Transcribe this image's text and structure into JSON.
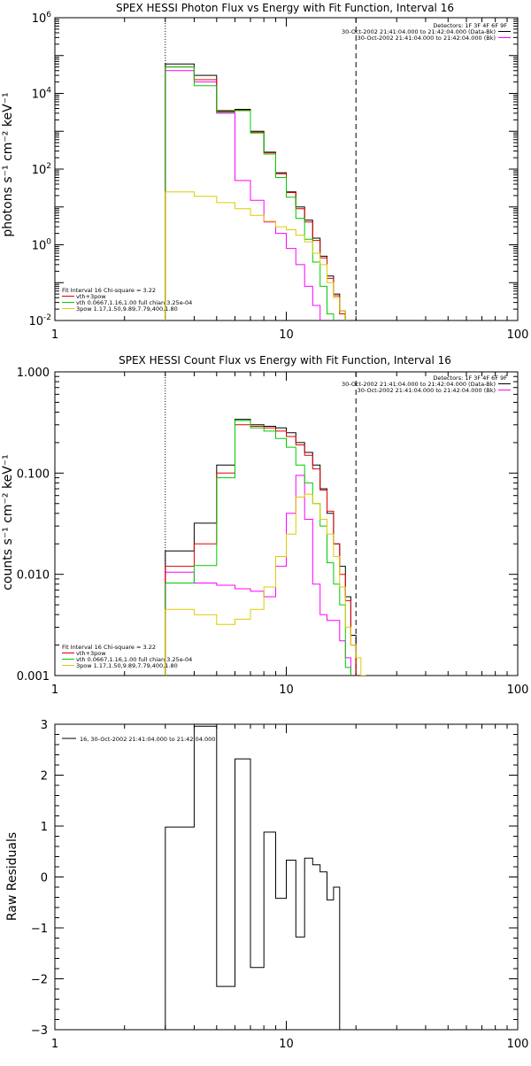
{
  "chart_data": [
    {
      "type": "line",
      "title": "SPEX HESSI Photon Flux vs Energy with Fit Function, Interval 16",
      "ylabel": "photons s⁻¹ cm⁻² keV⁻¹",
      "xscale": "log",
      "yscale": "log",
      "xlim": [
        1,
        100
      ],
      "ylim": [
        0.01,
        1000000
      ],
      "xticks": [
        "1",
        "10",
        "100"
      ],
      "yticks": [
        {
          "base": "10",
          "exp": "-2"
        },
        {
          "base": "10",
          "exp": "0"
        },
        {
          "base": "10",
          "exp": "2"
        },
        {
          "base": "10",
          "exp": "4"
        },
        {
          "base": "10",
          "exp": "6"
        }
      ],
      "vlines": [
        {
          "x": 3.0,
          "style": "dotted"
        },
        {
          "x": 20.0,
          "style": "dashed"
        }
      ],
      "info_text": [
        "Detectors: 1F 3F 4F 6F 9F",
        "30-Oct-2002 21:41:04.000 to 21:42:04.000 (Data-Bk)",
        "30-Oct-2002 21:41:04.000 to 21:42:04.000 (Bk)"
      ],
      "legend_text": [
        "Fit Interval 16   Chi-square = 3.22",
        "vth+3pow",
        "vth 0.0667,1.16,1.00  full chian 3.25e-04",
        "3pow 1.17,1.50,9.89,7.79,400,1.80"
      ],
      "legend_placement": "bottom-left",
      "bin_edges": [
        3,
        4,
        5,
        6,
        7,
        8,
        9,
        10,
        11,
        12,
        13,
        14,
        15,
        16,
        17,
        18,
        19,
        20,
        21,
        22,
        24,
        26
      ],
      "series": [
        {
          "name": "",
          "color": "#000000",
          "values": [
            60000,
            30000,
            3500,
            3800,
            1000,
            280,
            80,
            25,
            10,
            4.5,
            1.5,
            0.5,
            0.15,
            0.05,
            0.018,
            0.005
          ]
        },
        {
          "name": "Data-Bk",
          "color": "#ff00ff",
          "values": [
            40000,
            20000,
            3000,
            50,
            15,
            4,
            2,
            0.8,
            0.3,
            0.08,
            0.025,
            0.007,
            null,
            null,
            null,
            null
          ]
        },
        {
          "name": "vth+3pow",
          "color": "#dd0000",
          "values": [
            50000,
            23000,
            3300,
            3600,
            950,
            270,
            75,
            24,
            9,
            4,
            1.3,
            0.45,
            0.13,
            0.045,
            0.015,
            null
          ]
        },
        {
          "name": "vth",
          "color": "#00cc00",
          "values": [
            50000,
            16000,
            3200,
            3500,
            900,
            250,
            60,
            18,
            5,
            1.4,
            0.35,
            0.08,
            0.015,
            null,
            null,
            null
          ]
        },
        {
          "name": "3pow",
          "color": "#ddcc00",
          "values": [
            25,
            19,
            13,
            9,
            6,
            4.2,
            3,
            2.5,
            1.8,
            1.2,
            0.6,
            0.3,
            0.1,
            0.04,
            0.018,
            0.008,
            0.004
          ]
        }
      ]
    },
    {
      "type": "line",
      "title": "SPEX HESSI Count Flux vs Energy with Fit Function, Interval 16",
      "ylabel": "counts s⁻¹ cm⁻² keV⁻¹",
      "xscale": "log",
      "yscale": "log",
      "xlim": [
        1,
        100
      ],
      "ylim": [
        0.001,
        1.0
      ],
      "xticks": [
        "1",
        "10",
        "100"
      ],
      "yticks": [
        "0.001",
        "0.010",
        "0.100",
        "1.000"
      ],
      "vlines": [
        {
          "x": 3.0,
          "style": "dotted"
        },
        {
          "x": 20.0,
          "style": "dashed"
        }
      ],
      "info_text": [
        "Detectors: 1F 3F 4F 6F 9F",
        "30-Oct-2002 21:41:04.000 to 21:42:04.000 (Data-Bk)",
        "30-Oct-2002 21:41:04.000 to 21:42:04.000 (Bk)"
      ],
      "legend_text": [
        "Fit Interval 16   Chi-square = 3.22",
        "vth+3pow",
        "vth 0.0667,1.16,1.00  full chian 3.25e-04",
        "3pow 1.17,1.50,9.89,7.79,400,1.80"
      ],
      "legend_placement": "bottom-left",
      "bin_edges": [
        3,
        4,
        5,
        6,
        7,
        8,
        9,
        10,
        11,
        12,
        13,
        14,
        15,
        16,
        17,
        18,
        19,
        20,
        21,
        22,
        24,
        26
      ],
      "series": [
        {
          "name": "",
          "color": "#000000",
          "values": [
            0.017,
            0.032,
            0.12,
            0.34,
            0.3,
            0.29,
            0.28,
            0.25,
            0.2,
            0.16,
            0.12,
            0.07,
            0.04,
            0.02,
            0.012,
            0.006,
            0.0025
          ]
        },
        {
          "name": "Data-Bk",
          "color": "#ff00ff",
          "values": [
            0.0105,
            0.0082,
            0.0078,
            0.0072,
            0.0068,
            0.006,
            0.012,
            0.04,
            0.095,
            0.035,
            0.008,
            0.004,
            0.0035,
            0.0035,
            0.0022,
            0.0015,
            null
          ]
        },
        {
          "name": "vth+3pow",
          "color": "#dd0000",
          "values": [
            0.012,
            0.02,
            0.1,
            0.3,
            0.29,
            0.28,
            0.26,
            0.23,
            0.19,
            0.15,
            0.11,
            0.068,
            0.042,
            0.02,
            0.01,
            0.0055,
            0.002
          ]
        },
        {
          "name": "vth",
          "color": "#00cc00",
          "values": [
            0.0082,
            0.0122,
            0.09,
            0.33,
            0.28,
            0.26,
            0.22,
            0.18,
            0.12,
            0.08,
            0.05,
            0.03,
            0.013,
            0.008,
            0.005,
            0.0012,
            null
          ]
        },
        {
          "name": "3pow",
          "color": "#ddcc00",
          "values": [
            0.0045,
            0.004,
            0.0032,
            0.0036,
            0.0045,
            0.0075,
            0.015,
            0.025,
            0.058,
            0.062,
            0.05,
            0.035,
            0.025,
            0.015,
            0.0075,
            0.003,
            0.002,
            0.0015,
            0.001,
            0.0008
          ]
        }
      ]
    },
    {
      "type": "line",
      "title": "",
      "ylabel": "Raw Residuals",
      "xscale": "log",
      "yscale": "linear",
      "xlim": [
        1,
        100
      ],
      "ylim": [
        -3,
        3
      ],
      "xticks": [
        "1",
        "10",
        "100"
      ],
      "yticks": [
        "3",
        "2",
        "1",
        "0",
        "−1",
        "−2",
        "−3"
      ],
      "legend_text": [
        "16, 30-Oct-2002 21:41:04.000 to 21:42:04.000"
      ],
      "legend_placement": "top-left",
      "bin_edges": [
        3,
        4,
        5,
        6,
        7,
        8,
        9,
        10,
        11,
        12,
        13,
        14,
        15,
        16,
        17,
        18,
        19,
        20
      ],
      "series": [
        {
          "name": "",
          "color": "#000000",
          "values": [
            0.98,
            2.96,
            -2.15,
            2.32,
            -1.78,
            0.88,
            -0.42,
            0.33,
            -1.18,
            0.37,
            0.24,
            0.1,
            -0.45,
            -0.2
          ]
        }
      ]
    }
  ]
}
